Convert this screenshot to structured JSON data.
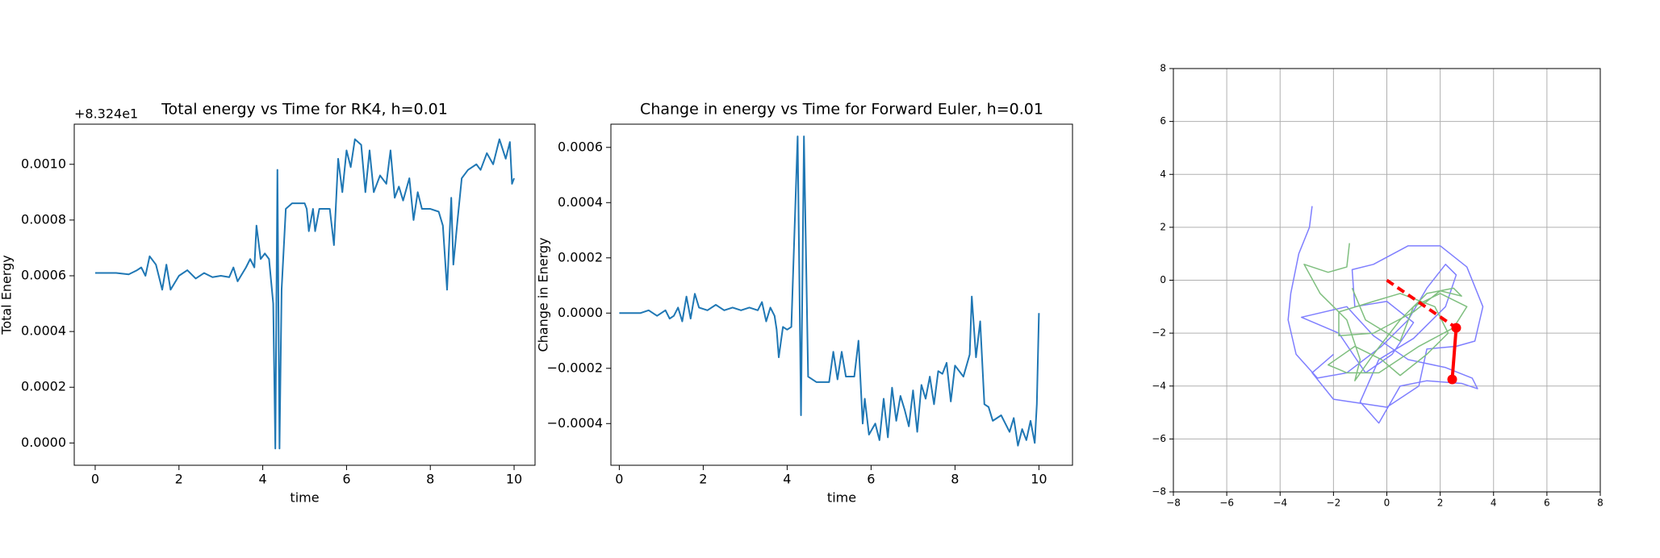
{
  "chart_data": [
    {
      "type": "line",
      "title": "Total energy vs Time for RK4, h=0.01",
      "offset_text": "+8.324e1",
      "x_label": "time",
      "y_label": "Total Energy",
      "color": "#1f77b4",
      "grid": false,
      "xlim": [
        -0.5,
        10.5
      ],
      "xticks": [
        0,
        2,
        4,
        6,
        8,
        10
      ],
      "ylim": [
        -8e-05,
        0.001144
      ],
      "yticks": [
        {
          "value": 0,
          "label": "0.0000"
        },
        0.0002,
        0.0004,
        0.0006,
        0.0008,
        {
          "value": 0.001,
          "label": "0.0010"
        }
      ],
      "x": [
        0,
        0.5,
        0.8,
        1.0,
        1.1,
        1.2,
        1.3,
        1.45,
        1.6,
        1.7,
        1.8,
        2.0,
        2.2,
        2.4,
        2.6,
        2.8,
        3.0,
        3.2,
        3.3,
        3.4,
        3.6,
        3.7,
        3.8,
        3.85,
        3.95,
        4.05,
        4.15,
        4.25,
        4.3,
        4.35,
        4.4,
        4.45,
        4.55,
        4.7,
        5.0,
        5.05,
        5.1,
        5.2,
        5.25,
        5.35,
        5.6,
        5.7,
        5.8,
        5.9,
        6.0,
        6.1,
        6.2,
        6.35,
        6.45,
        6.55,
        6.65,
        6.8,
        6.95,
        7.05,
        7.15,
        7.25,
        7.35,
        7.5,
        7.6,
        7.7,
        7.8,
        8.0,
        8.2,
        8.3,
        8.4,
        8.5,
        8.55,
        8.65,
        8.75,
        8.9,
        9.1,
        9.2,
        9.35,
        9.5,
        9.65,
        9.8,
        9.9,
        9.95,
        10.0
      ],
      "values": [
        0.00061,
        0.00061,
        0.000605,
        0.00062,
        0.00063,
        0.0006,
        0.00067,
        0.00064,
        0.00055,
        0.00064,
        0.00055,
        0.0006,
        0.00062,
        0.00059,
        0.00061,
        0.000595,
        0.0006,
        0.000595,
        0.00063,
        0.00058,
        0.00063,
        0.00066,
        0.00063,
        0.00078,
        0.00066,
        0.00068,
        0.00066,
        0.0005,
        -2e-05,
        0.00098,
        -2e-05,
        0.00055,
        0.00084,
        0.00086,
        0.00086,
        0.00084,
        0.00076,
        0.00084,
        0.00076,
        0.00084,
        0.00084,
        0.00071,
        0.00102,
        0.0009,
        0.00105,
        0.00099,
        0.00109,
        0.00107,
        0.0009,
        0.00105,
        0.0009,
        0.00096,
        0.00093,
        0.00105,
        0.00088,
        0.00092,
        0.00087,
        0.00095,
        0.0008,
        0.0009,
        0.00084,
        0.00084,
        0.00083,
        0.00078,
        0.00055,
        0.00088,
        0.00064,
        0.0008,
        0.00095,
        0.00098,
        0.001,
        0.00098,
        0.00104,
        0.001,
        0.00109,
        0.00102,
        0.00108,
        0.00093,
        0.00095
      ]
    },
    {
      "type": "line",
      "title": "Change in energy vs Time for Forward Euler, h=0.01",
      "x_label": "time",
      "y_label": "Change in Energy",
      "color": "#1f77b4",
      "grid": false,
      "xlim": [
        -0.2,
        10.8
      ],
      "xticks": [
        0,
        2,
        4,
        6,
        8,
        10
      ],
      "ylim": [
        -0.000551,
        0.000684
      ],
      "yticks": [
        {
          "value": -0.0004,
          "label": "−0.0004"
        },
        {
          "value": -0.0002,
          "label": "−0.0002"
        },
        {
          "value": 0,
          "label": "0.0000"
        },
        0.0002,
        0.0004,
        0.0006
      ],
      "x": [
        0,
        0.5,
        0.7,
        0.9,
        1.1,
        1.2,
        1.3,
        1.4,
        1.5,
        1.6,
        1.7,
        1.8,
        1.9,
        2.1,
        2.3,
        2.5,
        2.7,
        2.9,
        3.1,
        3.3,
        3.4,
        3.5,
        3.6,
        3.7,
        3.75,
        3.8,
        3.9,
        4.0,
        4.1,
        4.25,
        4.33,
        4.4,
        4.5,
        4.7,
        5.0,
        5.1,
        5.2,
        5.3,
        5.4,
        5.6,
        5.7,
        5.8,
        5.85,
        5.95,
        6.1,
        6.2,
        6.3,
        6.4,
        6.5,
        6.6,
        6.7,
        6.8,
        6.9,
        7.0,
        7.1,
        7.2,
        7.3,
        7.4,
        7.5,
        7.6,
        7.7,
        7.8,
        7.9,
        8.0,
        8.2,
        8.35,
        8.4,
        8.5,
        8.6,
        8.7,
        8.8,
        8.9,
        9.1,
        9.2,
        9.3,
        9.4,
        9.5,
        9.6,
        9.7,
        9.8,
        9.9,
        9.95,
        10.0
      ],
      "values": [
        0,
        0,
        1e-05,
        -1e-05,
        1e-05,
        -2e-05,
        -1e-05,
        2e-05,
        -3e-05,
        6e-05,
        -2e-05,
        7e-05,
        2e-05,
        1e-05,
        3e-05,
        1e-05,
        2e-05,
        1e-05,
        2e-05,
        1e-05,
        4e-05,
        -3e-05,
        2e-05,
        -1e-05,
        -6e-05,
        -0.00016,
        -5e-05,
        -6e-05,
        -5e-05,
        0.00064,
        -0.00037,
        0.00064,
        -0.00023,
        -0.00025,
        -0.00025,
        -0.00014,
        -0.00024,
        -0.00014,
        -0.00023,
        -0.00023,
        -0.0001,
        -0.0004,
        -0.00031,
        -0.00044,
        -0.0004,
        -0.00046,
        -0.00031,
        -0.00045,
        -0.00027,
        -0.00039,
        -0.0003,
        -0.00035,
        -0.00041,
        -0.00028,
        -0.00043,
        -0.00026,
        -0.00031,
        -0.00023,
        -0.00033,
        -0.00021,
        -0.00022,
        -0.00018,
        -0.00032,
        -0.00019,
        -0.00023,
        -0.00015,
        6e-05,
        -0.00016,
        -3e-05,
        -0.00033,
        -0.00034,
        -0.00039,
        -0.00037,
        -0.0004,
        -0.00043,
        -0.00038,
        -0.00048,
        -0.00042,
        -0.00046,
        -0.00039,
        -0.00047,
        -0.00033,
        0
      ]
    },
    {
      "type": "trajectory",
      "grid": true,
      "xlim": [
        -8,
        8
      ],
      "xticks": [
        {
          "value": -8,
          "label": "−8"
        },
        {
          "value": -6,
          "label": "−6"
        },
        {
          "value": -4,
          "label": "−4"
        },
        {
          "value": -2,
          "label": "−2"
        },
        0,
        2,
        4,
        6,
        8
      ],
      "ylim": [
        -8,
        8
      ],
      "yticks": [
        {
          "value": -8,
          "label": "−8"
        },
        {
          "value": -6,
          "label": "−6"
        },
        {
          "value": -4,
          "label": "−4"
        },
        {
          "value": -2,
          "label": "−2"
        },
        0,
        2,
        4,
        6,
        8
      ],
      "series": [
        {
          "color": "#7f7fff",
          "style": "solid",
          "width": 1.5,
          "x": [
            -2.8,
            -2.9,
            -3.3,
            -3.6,
            -3.7,
            -3.4,
            -2.6,
            -1.5,
            -0.2,
            0.8,
            1.5,
            2.2,
            2.6,
            2.2,
            1.0,
            -0.3,
            -1.0,
            -0.3,
            0.5,
            1.5,
            2.8,
            3.4,
            3.2,
            2.2,
            0.8,
            -0.5,
            -1.5,
            -3.2,
            -1.8,
            -0.8,
            0.2,
            1.0,
            0,
            -1.2,
            -1.3,
            -0.5,
            0.8,
            2.0,
            3.0,
            3.6,
            3.3,
            2.6,
            1.5,
            1.2,
            0,
            -2.0,
            -2.8,
            -2.0
          ],
          "values": [
            2.8,
            2.0,
            1.0,
            -0.5,
            -1.5,
            -2.8,
            -3.7,
            -3.5,
            -2.5,
            -1.5,
            -0.3,
            0.6,
            0.2,
            -1.0,
            -2.2,
            -3.0,
            -4.6,
            -5.4,
            -4.0,
            -3.8,
            -3.9,
            -4.1,
            -3.7,
            -3.3,
            -3.0,
            -2.1,
            -1.0,
            -1.4,
            -2.0,
            -3.5,
            -2.8,
            -1.6,
            -0.8,
            -1.0,
            0.4,
            0.6,
            1.3,
            1.3,
            0.5,
            -1.0,
            -2.3,
            -2.5,
            -2.6,
            -4.0,
            -4.8,
            -4.5,
            -3.5,
            -2.8
          ]
        },
        {
          "color": "#7fbf7f",
          "style": "solid",
          "width": 1.5,
          "x": [
            -1.4,
            -1.5,
            -2.2,
            -3.1,
            -2.5,
            -1.5,
            -1.0,
            -1.2,
            -0.5,
            0.5,
            1.5,
            2.5,
            2.8,
            2.0,
            1.0,
            -0.5,
            -1.8,
            -1.8,
            -0.5,
            0.5,
            1.8,
            2.3,
            1.5,
            0.5,
            -0.2,
            -1.2,
            -2.2,
            -1.5,
            -0.3,
            1.2,
            2.5,
            3.0,
            2.0,
            1.0,
            0.5,
            -0.8,
            -1.3
          ],
          "values": [
            1.4,
            0.5,
            0.3,
            0.6,
            -0.5,
            -1.5,
            -3.0,
            -3.8,
            -2.8,
            -1.5,
            -0.5,
            -0.3,
            -0.6,
            -0.4,
            -1.2,
            -2.0,
            -2.1,
            -1.2,
            -0.8,
            -0.5,
            -1.0,
            -2.0,
            -2.8,
            -3.6,
            -3.0,
            -2.5,
            -3.2,
            -3.5,
            -3.5,
            -2.5,
            -1.8,
            -1.0,
            -0.5,
            -1.0,
            -2.3,
            -1.5,
            -0.3
          ]
        },
        {
          "color": "#ff0000",
          "style": "dashed",
          "width": 4,
          "x": [
            0,
            2.6
          ],
          "values": [
            0,
            -1.8
          ]
        },
        {
          "color": "#ff0000",
          "style": "solid",
          "width": 4,
          "marker": "o",
          "x": [
            2.6,
            2.45
          ],
          "values": [
            -1.8,
            -3.75
          ]
        }
      ]
    }
  ]
}
